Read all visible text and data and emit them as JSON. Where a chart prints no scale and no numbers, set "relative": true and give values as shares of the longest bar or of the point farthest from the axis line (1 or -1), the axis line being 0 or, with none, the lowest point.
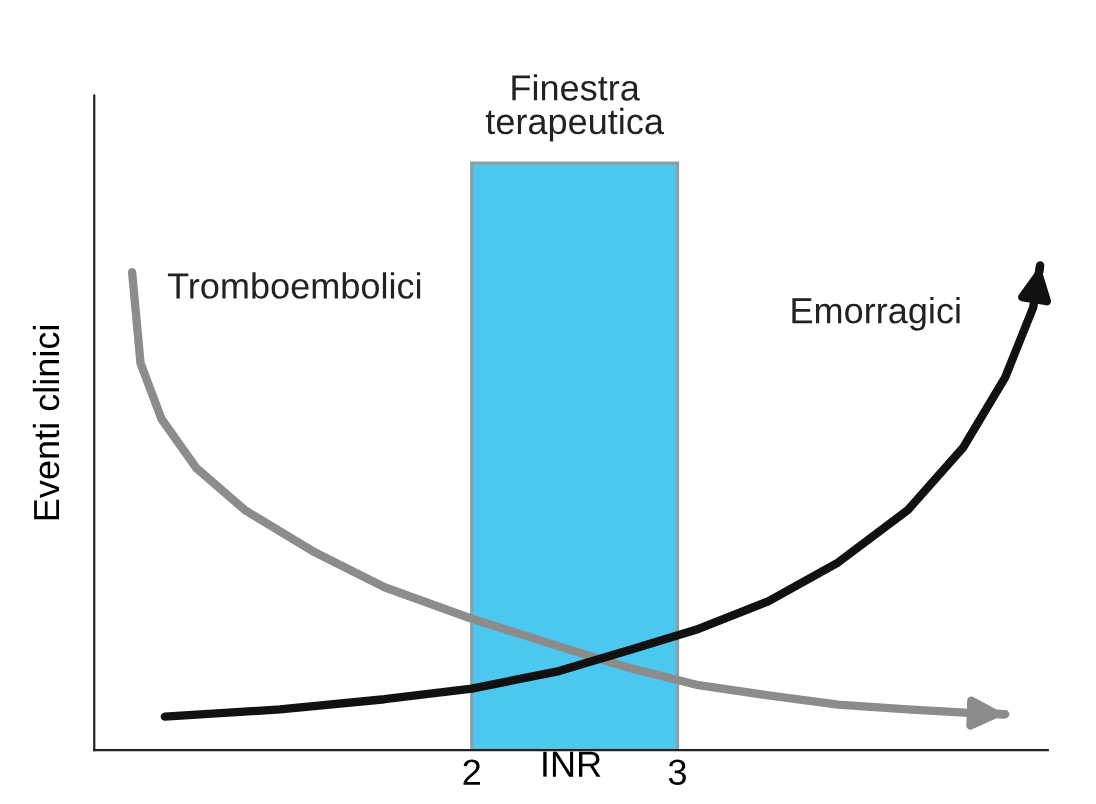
{
  "chart_data": {
    "type": "line",
    "relative": true,
    "ylabel": "Eventi clinici",
    "xlabel": "INR",
    "xlim": [
      0.165,
      4.8
    ],
    "xticks": [
      2,
      3
    ],
    "grid": false,
    "legend": false,
    "marker": "none",
    "line_style": "solid",
    "series": [
      {
        "name": "Tromboembolici",
        "color": "#8c8c8c",
        "x": [
          0.349,
          0.39,
          0.492,
          0.661,
          0.898,
          1.237,
          1.576,
          2.0,
          2.424,
          2.763,
          3.102,
          3.441,
          3.78,
          4.119,
          4.458,
          4.593
        ],
        "values": [
          0.986,
          0.798,
          0.683,
          0.582,
          0.495,
          0.408,
          0.336,
          0.271,
          0.214,
          0.17,
          0.134,
          0.113,
          0.094,
          0.084,
          0.076,
          0.074
        ]
      },
      {
        "name": "Emorragici",
        "color": "#111111",
        "x": [
          0.508,
          1.068,
          1.576,
          2.0,
          2.424,
          2.763,
          3.102,
          3.441,
          3.78,
          4.119,
          4.39,
          4.593,
          4.729,
          4.763
        ],
        "values": [
          0.069,
          0.084,
          0.105,
          0.127,
          0.163,
          0.206,
          0.25,
          0.307,
          0.387,
          0.495,
          0.625,
          0.769,
          0.913,
          1.0
        ]
      }
    ],
    "bands": [
      {
        "axis": "x",
        "from": 2,
        "to": 3,
        "label": "Finestra terapeutica",
        "color": "#4cc8f0"
      }
    ]
  }
}
